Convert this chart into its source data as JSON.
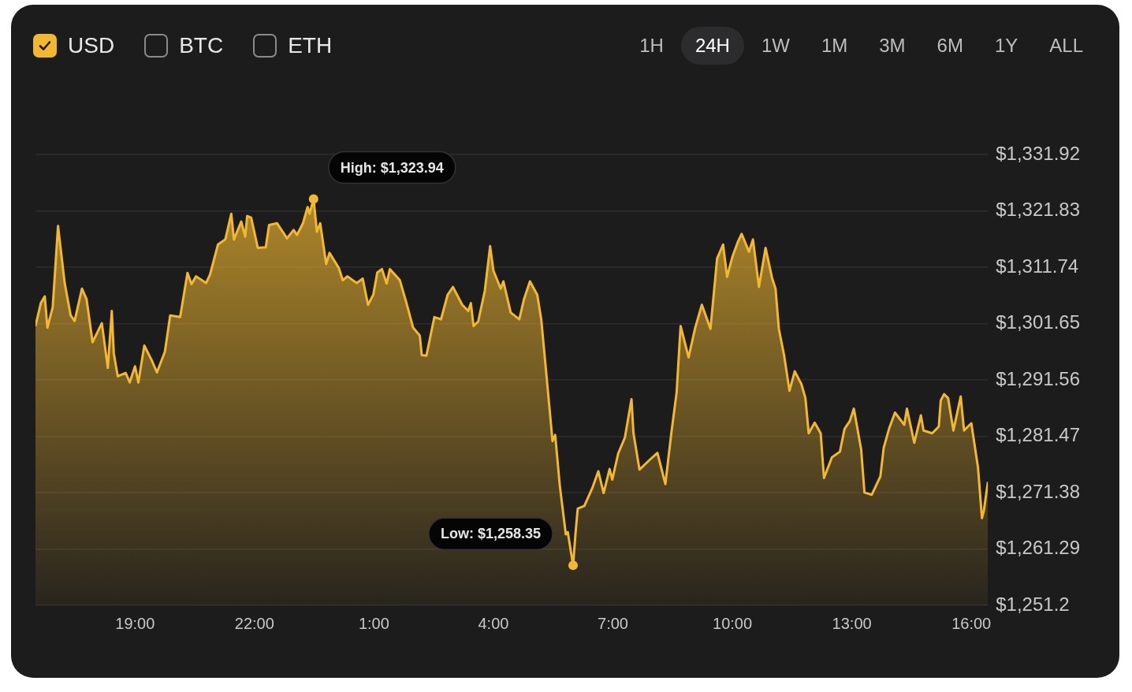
{
  "chart_data": {
    "type": "area",
    "x": [
      "2000-01-01T16:30",
      "2000-01-01T16:38",
      "2000-01-01T16:44",
      "2000-01-01T16:48",
      "2000-01-01T16:56",
      "2000-01-01T17:04",
      "2000-01-01T17:14",
      "2000-01-01T17:23",
      "2000-01-01T17:29",
      "2000-01-01T17:40",
      "2000-01-01T17:47",
      "2000-01-01T17:56",
      "2000-01-01T18:10",
      "2000-01-01T18:19",
      "2000-01-01T18:25",
      "2000-01-01T18:28",
      "2000-01-01T18:34",
      "2000-01-01T18:46",
      "2000-01-01T18:52",
      "2000-01-01T19:00",
      "2000-01-01T19:05",
      "2000-01-01T19:14",
      "2000-01-01T19:25",
      "2000-01-01T19:33",
      "2000-01-01T19:45",
      "2000-01-01T19:53",
      "2000-01-01T20:08",
      "2000-01-01T20:19",
      "2000-01-01T20:25",
      "2000-01-01T20:32",
      "2000-01-01T20:47",
      "2000-01-01T20:53",
      "2000-01-01T21:05",
      "2000-01-01T21:16",
      "2000-01-01T21:25",
      "2000-01-01T21:29",
      "2000-01-01T21:40",
      "2000-01-01T21:46",
      "2000-01-01T21:49",
      "2000-01-01T21:55",
      "2000-01-01T22:05",
      "2000-01-01T22:17",
      "2000-01-01T22:22",
      "2000-01-01T22:34",
      "2000-01-01T22:49",
      "2000-01-01T22:59",
      "2000-01-01T23:04",
      "2000-01-01T23:13",
      "2000-01-01T23:20",
      "2000-01-01T23:23",
      "2000-01-01T23:29",
      "2000-01-01T23:34",
      "2000-01-01T23:39",
      "2000-01-01T23:48",
      "2000-01-01T23:53",
      "2000-01-02T00:07",
      "2000-01-02T00:13",
      "2000-01-02T00:20",
      "2000-01-02T00:34",
      "2000-01-02T00:43",
      "2000-01-02T00:51",
      "2000-01-02T00:59",
      "2000-01-02T01:05",
      "2000-01-02T01:12",
      "2000-01-02T01:19",
      "2000-01-02T01:24",
      "2000-01-02T01:39",
      "2000-01-02T01:49",
      "2000-01-02T01:59",
      "2000-01-02T02:09",
      "2000-01-02T02:12",
      "2000-01-02T02:19",
      "2000-01-02T02:31",
      "2000-01-02T02:41",
      "2000-01-02T02:51",
      "2000-01-02T02:59",
      "2000-01-02T03:13",
      "2000-01-02T03:22",
      "2000-01-02T03:26",
      "2000-01-02T03:30",
      "2000-01-02T03:37",
      "2000-01-02T03:47",
      "2000-01-02T03:55",
      "2000-01-02T04:00",
      "2000-01-02T04:11",
      "2000-01-02T04:15",
      "2000-01-02T04:26",
      "2000-01-02T04:39",
      "2000-01-02T04:46",
      "2000-01-02T04:55",
      "2000-01-02T05:06",
      "2000-01-02T05:12",
      "2000-01-02T05:20",
      "2000-01-02T05:29",
      "2000-01-02T05:33",
      "2000-01-02T05:40",
      "2000-01-02T05:49",
      "2000-01-02T05:52",
      "2000-01-02T06:00",
      "2000-01-02T06:04",
      "2000-01-02T06:07",
      "2000-01-02T06:17",
      "2000-01-02T06:29",
      "2000-01-02T06:38",
      "2000-01-02T06:46",
      "2000-01-02T06:55",
      "2000-01-02T06:59",
      "2000-01-02T07:08",
      "2000-01-02T07:18",
      "2000-01-02T07:28",
      "2000-01-02T07:31",
      "2000-01-02T07:40",
      "2000-01-02T07:55",
      "2000-01-02T08:07",
      "2000-01-02T08:19",
      "2000-01-02T08:28",
      "2000-01-02T08:36",
      "2000-01-02T08:42",
      "2000-01-02T08:54",
      "2000-01-02T09:04",
      "2000-01-02T09:14",
      "2000-01-02T09:27",
      "2000-01-02T09:37",
      "2000-01-02T09:46",
      "2000-01-02T09:52",
      "2000-01-02T10:00",
      "2000-01-02T10:08",
      "2000-01-02T10:14",
      "2000-01-02T10:25",
      "2000-01-02T10:31",
      "2000-01-02T10:40",
      "2000-01-02T10:50",
      "2000-01-02T11:00",
      "2000-01-02T11:05",
      "2000-01-02T11:10",
      "2000-01-02T11:18",
      "2000-01-02T11:26",
      "2000-01-02T11:34",
      "2000-01-02T11:44",
      "2000-01-02T11:50",
      "2000-01-02T11:55",
      "2000-01-02T12:04",
      "2000-01-02T12:13",
      "2000-01-02T12:18",
      "2000-01-02T12:30",
      "2000-01-02T12:42",
      "2000-01-02T12:49",
      "2000-01-02T12:57",
      "2000-01-02T13:03",
      "2000-01-02T13:14",
      "2000-01-02T13:19",
      "2000-01-02T13:30",
      "2000-01-02T13:43",
      "2000-01-02T13:48",
      "2000-01-02T13:56",
      "2000-01-02T14:05",
      "2000-01-02T14:19",
      "2000-01-02T14:23",
      "2000-01-02T14:34",
      "2000-01-02T14:44",
      "2000-01-02T14:48",
      "2000-01-02T15:01",
      "2000-01-02T15:11",
      "2000-01-02T15:14",
      "2000-01-02T15:19",
      "2000-01-02T15:25",
      "2000-01-02T15:33",
      "2000-01-02T15:44",
      "2000-01-02T15:49",
      "2000-01-02T16:00",
      "2000-01-02T16:10",
      "2000-01-02T16:16",
      "2000-01-02T16:19",
      "2000-01-02T16:25"
    ],
    "series": [
      {
        "name": "USD",
        "color": "#f2b830",
        "values": [
          1301.2,
          1305.3,
          1306.5,
          1300.9,
          1304.6,
          1319.1,
          1308.9,
          1303.1,
          1302.1,
          1307.9,
          1306.0,
          1298.3,
          1301.7,
          1293.7,
          1303.9,
          1296.3,
          1292.2,
          1292.8,
          1291.1,
          1294.0,
          1291.1,
          1297.7,
          1295.1,
          1292.9,
          1296.6,
          1303.1,
          1302.8,
          1310.7,
          1308.7,
          1310.1,
          1308.9,
          1310.4,
          1315.8,
          1316.7,
          1321.3,
          1316.7,
          1319.9,
          1317.2,
          1320.9,
          1320.6,
          1315.2,
          1315.3,
          1319.3,
          1319.6,
          1316.9,
          1318.4,
          1317.5,
          1319.6,
          1322.5,
          1321.3,
          1323.94,
          1318.1,
          1319.6,
          1312.3,
          1314.3,
          1311.6,
          1309.4,
          1310.1,
          1308.9,
          1309.7,
          1305.0,
          1306.8,
          1310.8,
          1311.4,
          1308.8,
          1311.4,
          1309.4,
          1305.3,
          1300.9,
          1299.5,
          1296.0,
          1295.9,
          1302.8,
          1302.4,
          1306.8,
          1308.2,
          1305.0,
          1303.9,
          1305.3,
          1301.2,
          1302.0,
          1307.5,
          1315.5,
          1311.1,
          1307.9,
          1309.2,
          1303.6,
          1302.4,
          1306.0,
          1309.2,
          1306.8,
          1302.4,
          1292.2,
          1280.6,
          1281.7,
          1272.6,
          1263.9,
          1264.3,
          1258.35,
          1264.6,
          1268.5,
          1269.0,
          1272.2,
          1275.2,
          1271.3,
          1275.6,
          1273.7,
          1278.4,
          1281.2,
          1288.1,
          1282.0,
          1275.5,
          1277.2,
          1278.5,
          1272.9,
          1282.0,
          1289.3,
          1301.2,
          1295.6,
          1300.9,
          1305.0,
          1300.7,
          1313.3,
          1315.8,
          1310.0,
          1313.6,
          1316.2,
          1317.7,
          1314.5,
          1316.7,
          1308.2,
          1315.2,
          1309.7,
          1307.9,
          1300.7,
          1295.9,
          1289.6,
          1293.1,
          1290.8,
          1288.3,
          1282.0,
          1283.9,
          1282.0,
          1274.0,
          1277.7,
          1278.7,
          1282.8,
          1284.2,
          1286.4,
          1279.1,
          1271.4,
          1271.0,
          1274.3,
          1279.4,
          1282.8,
          1285.7,
          1283.5,
          1286.4,
          1280.3,
          1285.2,
          1282.5,
          1282.0,
          1283.2,
          1287.9,
          1289.0,
          1288.3,
          1282.5,
          1288.6,
          1282.5,
          1283.8,
          1275.9,
          1266.8,
          1268.2,
          1273.3
        ]
      }
    ],
    "xlim": [
      "2000-01-01T16:30",
      "2000-01-02T16:25"
    ],
    "xticks": [
      {
        "value": "2000-01-01T19:00",
        "label": "19:00"
      },
      {
        "value": "2000-01-01T22:00",
        "label": "22:00"
      },
      {
        "value": "2000-01-02T01:00",
        "label": "1:00"
      },
      {
        "value": "2000-01-02T04:00",
        "label": "4:00"
      },
      {
        "value": "2000-01-02T07:00",
        "label": "7:00"
      },
      {
        "value": "2000-01-02T10:00",
        "label": "10:00"
      },
      {
        "value": "2000-01-02T13:00",
        "label": "13:00"
      },
      {
        "value": "2000-01-02T16:00",
        "label": "16:00"
      }
    ],
    "ylim": [
      1251.2,
      1331.92
    ],
    "yticks": [
      {
        "value": 1251.2,
        "label": "$1,251.2"
      },
      {
        "value": 1261.29,
        "label": "$1,261.29"
      },
      {
        "value": 1271.38,
        "label": "$1,271.38"
      },
      {
        "value": 1281.47,
        "label": "$1,281.47"
      },
      {
        "value": 1291.56,
        "label": "$1,291.56"
      },
      {
        "value": 1301.65,
        "label": "$1,301.65"
      },
      {
        "value": 1311.74,
        "label": "$1,311.74"
      },
      {
        "value": 1321.83,
        "label": "$1,321.83"
      },
      {
        "value": 1331.92,
        "label": "$1,331.92"
      }
    ],
    "grid": "y",
    "legend": "top left",
    "marker": "none",
    "annotations": [
      {
        "text": "High: $1,323.94",
        "x": "2000-01-01T23:29",
        "y": 1323.94
      },
      {
        "text": "Low: $1,258.35",
        "x": "2000-01-02T06:00",
        "y": 1258.35
      },
      "BTC",
      "ETH",
      "1H",
      "24H",
      "1W",
      "1M",
      "3M",
      "6M",
      "1Y",
      "ALL"
    ]
  }
}
